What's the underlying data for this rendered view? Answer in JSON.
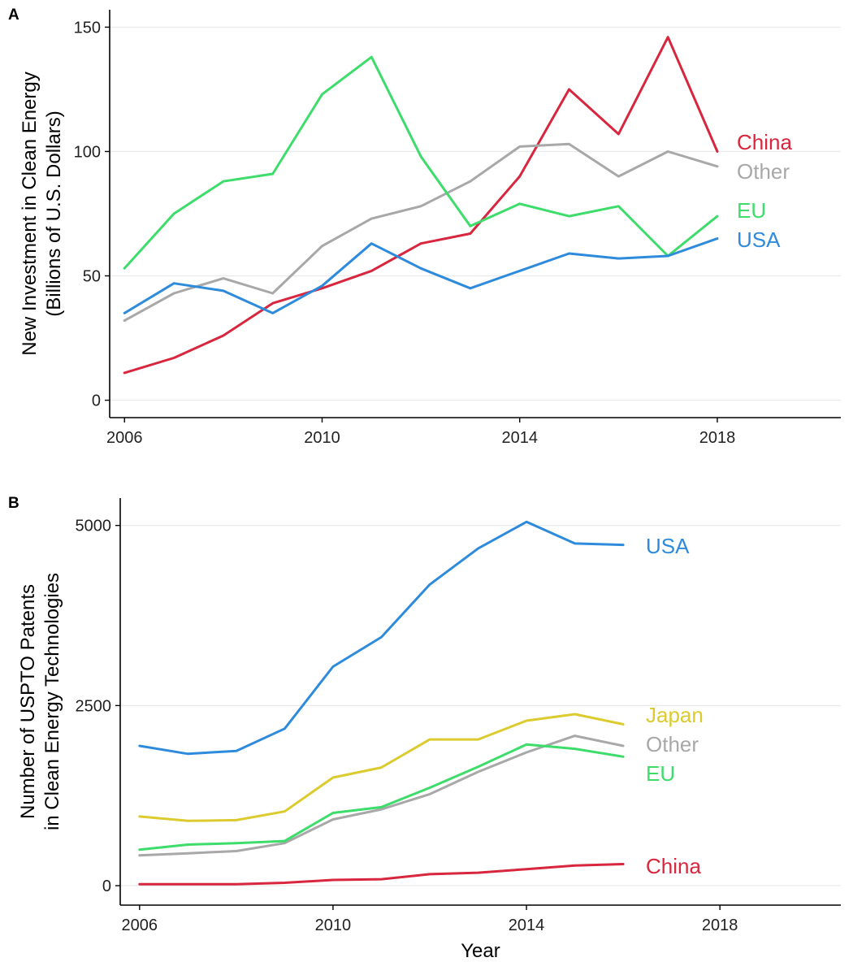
{
  "panels": {
    "a": {
      "letter": "A"
    },
    "b": {
      "letter": "B"
    }
  },
  "chart_data": [
    {
      "type": "line",
      "panel": "A",
      "xlabel": "",
      "ylabel": [
        "New Investment in Clean Energy",
        "(Billions of U.S. Dollars)"
      ],
      "xlim": [
        2005.7,
        2020.5
      ],
      "ylim": [
        -7,
        157
      ],
      "xticks": [
        2006,
        2010,
        2014,
        2018
      ],
      "yticks": [
        0,
        50,
        100,
        150
      ],
      "grid": "horizontal",
      "legend": "direct labels at right end of lines",
      "series": [
        {
          "name": "China",
          "color": "#d7263d",
          "x": [
            2006,
            2007,
            2008,
            2009,
            2010,
            2011,
            2012,
            2013,
            2014,
            2015,
            2016,
            2017,
            2018
          ],
          "values": [
            11,
            17,
            26,
            39,
            45,
            52,
            63,
            67,
            90,
            125,
            107,
            146,
            100
          ]
        },
        {
          "name": "Other",
          "color": "#a8a8a8",
          "x": [
            2006,
            2007,
            2008,
            2009,
            2010,
            2011,
            2012,
            2013,
            2014,
            2015,
            2016,
            2017,
            2018
          ],
          "values": [
            32,
            43,
            49,
            43,
            62,
            73,
            78,
            88,
            102,
            103,
            90,
            100,
            94
          ]
        },
        {
          "name": "EU",
          "color": "#3ddc6b",
          "x": [
            2006,
            2007,
            2008,
            2009,
            2010,
            2011,
            2012,
            2013,
            2014,
            2015,
            2016,
            2017,
            2018
          ],
          "values": [
            53,
            75,
            88,
            91,
            123,
            138,
            98,
            70,
            79,
            74,
            78,
            58,
            74
          ]
        },
        {
          "name": "USA",
          "color": "#2e8bdc",
          "x": [
            2006,
            2007,
            2008,
            2009,
            2010,
            2011,
            2012,
            2013,
            2014,
            2015,
            2016,
            2017,
            2018
          ],
          "values": [
            35,
            47,
            44,
            35,
            46,
            63,
            53,
            45,
            52,
            59,
            57,
            58,
            65
          ]
        }
      ]
    },
    {
      "type": "line",
      "panel": "B",
      "xlabel": "Year",
      "ylabel": [
        "Number of USPTO Patents",
        "in Clean Energy Technologies"
      ],
      "xlim": [
        2005.6,
        2020.5
      ],
      "ylim": [
        -270,
        5380
      ],
      "xticks": [
        2006,
        2010,
        2014,
        2018
      ],
      "yticks": [
        0,
        2500,
        5000
      ],
      "grid": "horizontal",
      "legend": "direct labels at right end of lines",
      "series": [
        {
          "name": "USA",
          "color": "#2e8bdc",
          "x": [
            2006,
            2007,
            2008,
            2009,
            2010,
            2011,
            2012,
            2013,
            2014,
            2015,
            2016
          ],
          "values": [
            1940,
            1830,
            1870,
            2180,
            3040,
            3450,
            4180,
            4680,
            5050,
            4750,
            4730
          ]
        },
        {
          "name": "Japan",
          "color": "#dccb2e",
          "x": [
            2006,
            2007,
            2008,
            2009,
            2010,
            2011,
            2012,
            2013,
            2014,
            2015,
            2016
          ],
          "values": [
            960,
            900,
            910,
            1030,
            1500,
            1640,
            2030,
            2030,
            2290,
            2380,
            2240
          ]
        },
        {
          "name": "Other",
          "color": "#a8a8a8",
          "x": [
            2006,
            2007,
            2008,
            2009,
            2010,
            2011,
            2012,
            2013,
            2014,
            2015,
            2016
          ],
          "values": [
            420,
            450,
            480,
            590,
            920,
            1060,
            1270,
            1580,
            1850,
            2080,
            1940
          ]
        },
        {
          "name": "EU",
          "color": "#3ddc6b",
          "x": [
            2006,
            2007,
            2008,
            2009,
            2010,
            2011,
            2012,
            2013,
            2014,
            2015,
            2016
          ],
          "values": [
            500,
            570,
            590,
            620,
            1010,
            1090,
            1360,
            1650,
            1960,
            1900,
            1790
          ]
        },
        {
          "name": "China",
          "color": "#d7263d",
          "x": [
            2006,
            2007,
            2008,
            2009,
            2010,
            2011,
            2012,
            2013,
            2014,
            2015,
            2016
          ],
          "values": [
            20,
            20,
            20,
            40,
            80,
            90,
            160,
            180,
            230,
            280,
            300
          ]
        }
      ]
    }
  ]
}
